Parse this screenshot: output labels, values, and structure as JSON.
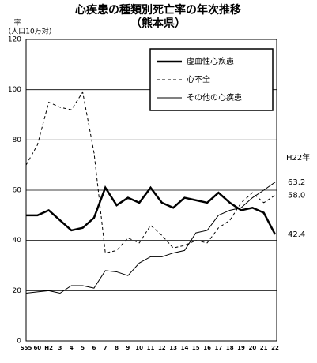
{
  "chart_data": {
    "type": "line",
    "title": "心疾患の種類別死亡率の年次推移",
    "subtitle": "（熊本県）",
    "y_label": "率",
    "y_unit": "（人口10万対）",
    "categories": [
      "S55",
      "60",
      "H2",
      "3",
      "4",
      "5",
      "6",
      "7",
      "8",
      "9",
      "10",
      "11",
      "12",
      "13",
      "14",
      "15",
      "16",
      "17",
      "18",
      "19",
      "20",
      "21",
      "22"
    ],
    "series": [
      {
        "name": "虚血性心疾患",
        "color": "#000000",
        "width": 2.5,
        "dash": false,
        "values": [
          50,
          50,
          52,
          48,
          44,
          45,
          49,
          61,
          54,
          57,
          55,
          61,
          55,
          53,
          57,
          56,
          55,
          59,
          55,
          52,
          53,
          51,
          42.4
        ],
        "value_labels": [
          null,
          null,
          null,
          null,
          null,
          null,
          null,
          null,
          null,
          null,
          null,
          null,
          null,
          null,
          null,
          null,
          null,
          null,
          null,
          null,
          null,
          null,
          "42.4"
        ]
      },
      {
        "name": "心不全",
        "color": "#000000",
        "width": 1,
        "dash": true,
        "values": [
          70,
          78,
          95,
          93,
          92,
          99,
          75,
          35,
          36,
          41,
          39,
          46,
          42,
          37,
          38,
          40,
          39,
          45,
          48,
          55,
          59,
          55,
          58.0
        ],
        "value_labels": [
          null,
          null,
          null,
          null,
          null,
          null,
          null,
          null,
          null,
          null,
          null,
          null,
          null,
          null,
          null,
          null,
          null,
          null,
          null,
          null,
          null,
          null,
          "58.0"
        ]
      },
      {
        "name": "その他の心疾患",
        "color": "#000000",
        "width": 1,
        "dash": false,
        "values": [
          19,
          19.5,
          20,
          19,
          22,
          22,
          21,
          28,
          27.5,
          26,
          31,
          33.5,
          33.5,
          35,
          36,
          43,
          44,
          50,
          52,
          53,
          57,
          60,
          63.2
        ],
        "value_labels": [
          null,
          null,
          null,
          null,
          null,
          null,
          null,
          null,
          null,
          null,
          null,
          null,
          null,
          null,
          null,
          null,
          null,
          null,
          null,
          null,
          null,
          null,
          "63.2"
        ]
      }
    ],
    "annotation": "H22年",
    "ylim": [
      0,
      120
    ],
    "yticks": [
      0,
      20,
      40,
      60,
      80,
      100,
      120
    ],
    "grid": true,
    "legend": "upper right"
  }
}
